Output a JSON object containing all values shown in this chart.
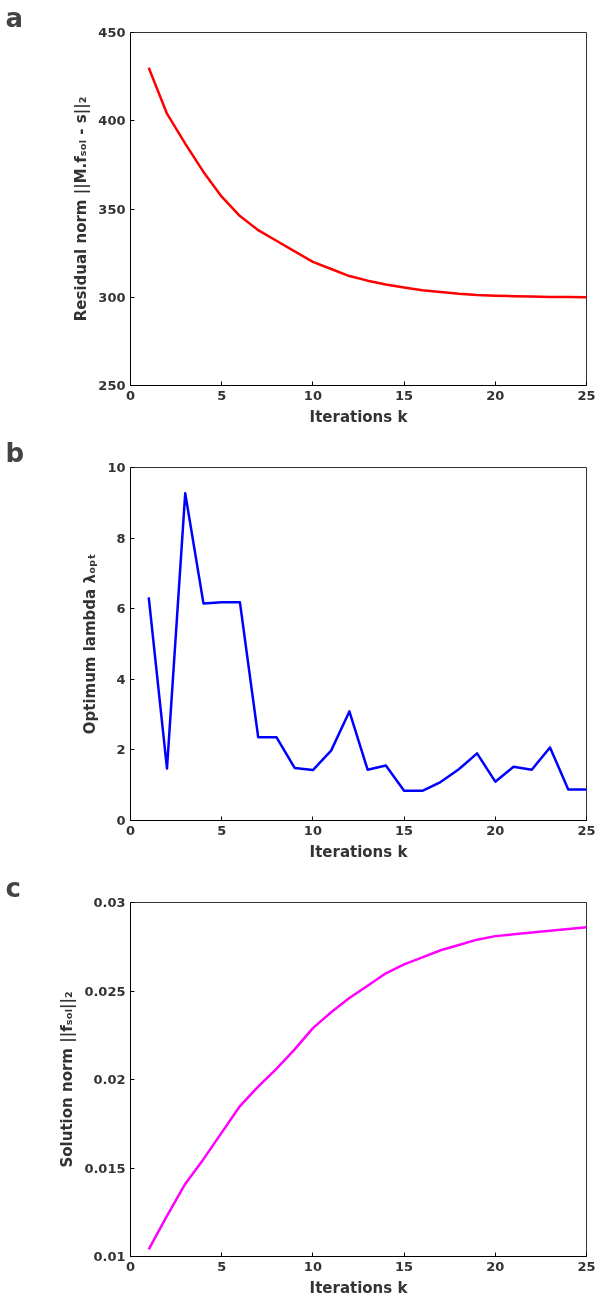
{
  "chart_data": [
    {
      "type": "line",
      "title": "a",
      "xlabel": "Iterations k",
      "ylabel": "Residual norm ||M.fₛₒₗ - s||₂",
      "x": [
        1,
        2,
        3,
        4,
        5,
        6,
        7,
        8,
        9,
        10,
        11,
        12,
        13,
        14,
        15,
        16,
        17,
        18,
        19,
        20,
        21,
        22,
        23,
        24,
        25
      ],
      "series": [
        {
          "color": "#ff0000",
          "values": [
            430,
            404,
            387,
            371,
            357,
            346,
            338,
            332,
            326,
            320,
            316,
            312,
            309.4,
            307.2,
            305.5,
            304,
            303,
            302,
            301.3,
            300.9,
            300.6,
            300.4,
            300.2,
            300.1,
            300
          ]
        }
      ],
      "xlim": [
        0,
        25
      ],
      "xticks": [
        0,
        5,
        10,
        15,
        20,
        25
      ],
      "ylim": [
        250,
        450
      ],
      "yticks": [
        250,
        300,
        350,
        400,
        450
      ],
      "grid": false
    },
    {
      "type": "line",
      "title": "b",
      "xlabel": "Iterations k",
      "ylabel": "Optimum lambda λₒₚₜ",
      "x": [
        1,
        2,
        3,
        4,
        5,
        6,
        7,
        8,
        9,
        10,
        11,
        12,
        13,
        14,
        15,
        16,
        17,
        18,
        19,
        20,
        21,
        22,
        23,
        24,
        25
      ],
      "series": [
        {
          "color": "#0000ff",
          "values": [
            6.32,
            1.47,
            9.27,
            6.15,
            6.18,
            6.18,
            2.36,
            2.36,
            1.49,
            1.43,
            1.98,
            3.09,
            1.44,
            1.56,
            0.84,
            0.84,
            1.09,
            1.45,
            1.9,
            1.1,
            1.52,
            1.44,
            2.07,
            0.88,
            0.88
          ]
        }
      ],
      "xlim": [
        0,
        25
      ],
      "xticks": [
        0,
        5,
        10,
        15,
        20,
        25
      ],
      "ylim": [
        0,
        10
      ],
      "yticks": [
        0,
        2,
        4,
        6,
        8,
        10
      ],
      "grid": false
    },
    {
      "type": "line",
      "title": "c",
      "xlabel": "Iterations k",
      "ylabel": "Solution norm ||fₛₒₗ||₂",
      "x": [
        1,
        2,
        3,
        4,
        5,
        6,
        7,
        8,
        9,
        10,
        11,
        12,
        13,
        14,
        15,
        16,
        17,
        18,
        19,
        20,
        21,
        22,
        23,
        24,
        25
      ],
      "series": [
        {
          "color": "#ff00ff",
          "values": [
            0.0104,
            0.0123,
            0.0141,
            0.0155,
            0.017,
            0.0185,
            0.0196,
            0.0206,
            0.0217,
            0.0229,
            0.0238,
            0.0246,
            0.0253,
            0.026,
            0.0265,
            0.0269,
            0.0273,
            0.0276,
            0.0279,
            0.0281,
            0.0282,
            0.0283,
            0.0284,
            0.0285,
            0.0286
          ]
        }
      ],
      "xlim": [
        0,
        25
      ],
      "xticks": [
        0,
        5,
        10,
        15,
        20,
        25
      ],
      "ylim": [
        0.01,
        0.03
      ],
      "yticks": [
        0.01,
        0.015,
        0.02,
        0.025,
        0.03
      ],
      "grid": false
    }
  ]
}
